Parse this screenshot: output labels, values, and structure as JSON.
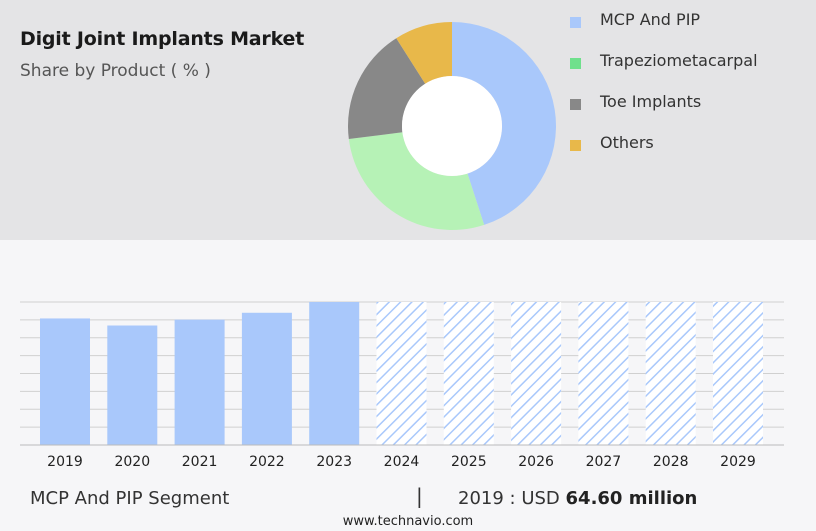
{
  "header": {
    "title": "Digit Joint Implants Market",
    "subtitle": "Share by Product ( % )"
  },
  "chart_data": [
    {
      "type": "pie",
      "donut": true,
      "slices": [
        {
          "label": "MCP And PIP",
          "value": 45,
          "color": "#a9c8fb"
        },
        {
          "label": "Trapeziometacarpal",
          "value": 28,
          "color": "#b6f2b6"
        },
        {
          "label": "Toe Implants",
          "value": 18,
          "color": "#888888"
        },
        {
          "label": "Others",
          "value": 9,
          "color": "#e8b84a"
        }
      ],
      "legend": "right",
      "legend_swatch_colors": [
        "#a9c8fb",
        "#6fe08c",
        "#888888",
        "#e8b84a"
      ]
    },
    {
      "type": "bar",
      "categories": [
        "2019",
        "2020",
        "2021",
        "2022",
        "2023",
        "2024",
        "2025",
        "2026",
        "2027",
        "2028",
        "2029"
      ],
      "values": [
        64.6,
        61.0,
        64.0,
        67.5,
        73.0,
        73.0,
        73.0,
        73.0,
        73.0,
        73.0,
        73.0
      ],
      "forecast_from": "2024",
      "forecast_style": "hatched",
      "ylim": [
        0,
        73
      ],
      "grid": true,
      "color": "#a9c8fb"
    }
  ],
  "footer": {
    "segment": "MCP And PIP Segment",
    "separator": "|",
    "value_prefix": "2019 : USD",
    "value_bold": "64.60 million",
    "site": "www.technavio.com"
  }
}
